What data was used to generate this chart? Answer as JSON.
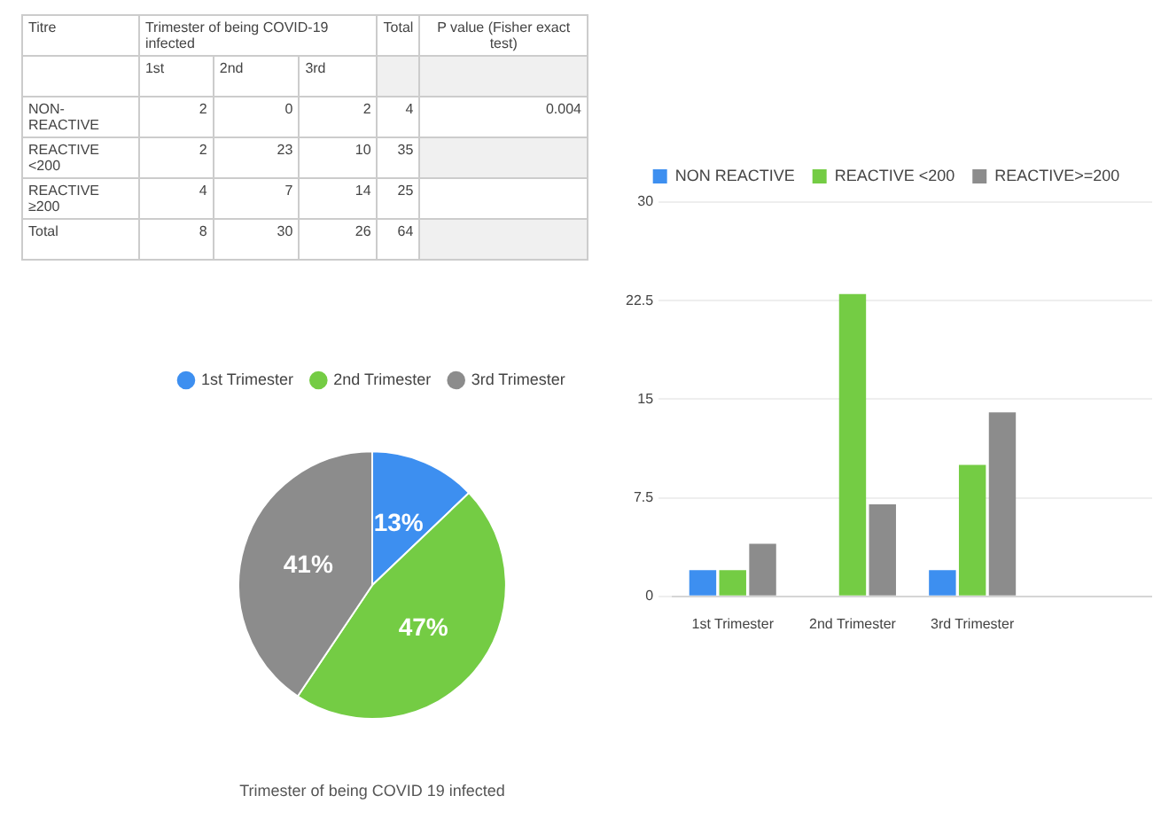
{
  "chart_data": [
    {
      "type": "other",
      "cells": [
        [
          "Titre",
          "Trimester of being COVID-19 infected",
          null,
          null,
          "Total",
          "P value (Fisher exact test)"
        ],
        [
          null,
          "1st",
          "2nd",
          "3rd",
          null,
          null
        ],
        [
          "NON-REACTIVE",
          "2",
          "0",
          "2",
          "4",
          "0.004"
        ],
        [
          "REACTIVE <200",
          "2",
          "23",
          "10",
          "35",
          null
        ],
        [
          "REACTIVE ≥200",
          "4",
          "7",
          "14",
          "25",
          null
        ],
        [
          "Total",
          "8",
          "30",
          "26",
          "64",
          null
        ]
      ]
    },
    {
      "type": "pie",
      "title": "Trimester of being COVID 19 infected",
      "categories": [
        "1st Trimester",
        "2nd Trimester",
        "3rd Trimester"
      ],
      "values": [
        13,
        47,
        41
      ],
      "colors": [
        "#3d8ff0",
        "#74cc44",
        "#8c8c8c"
      ],
      "value_labels": [
        "13%",
        "47%",
        "41%"
      ],
      "legend": "top"
    },
    {
      "type": "bar",
      "categories": [
        "1st Trimester",
        "2nd Trimester",
        "3rd Trimester",
        null
      ],
      "ylim": [
        0,
        30
      ],
      "yticks": [
        0,
        7.5,
        15,
        22.5,
        30
      ],
      "grid": "y",
      "legend": "top",
      "series": [
        {
          "name": "NON REACTIVE",
          "color": "#3d8ff0",
          "values": [
            2,
            0,
            2,
            null
          ]
        },
        {
          "name": "REACTIVE <200",
          "color": "#74cc44",
          "values": [
            2,
            23,
            10,
            null
          ]
        },
        {
          "name": "REACTIVE>=200",
          "color": "#8c8c8c",
          "values": [
            4,
            7,
            14,
            null
          ]
        }
      ]
    }
  ]
}
